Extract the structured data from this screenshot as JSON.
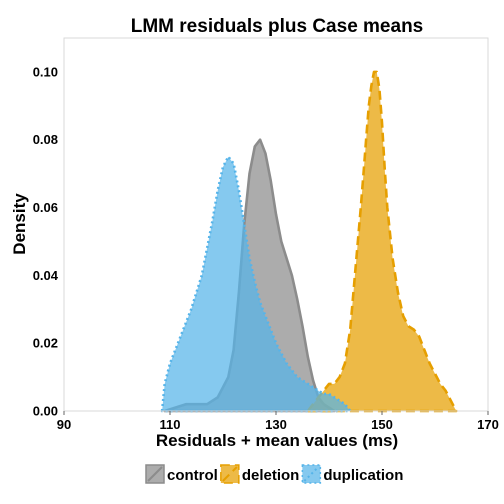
{
  "chart_data": {
    "type": "area",
    "title": "LMM residuals plus Case means",
    "xlabel": "Residuals + mean values (ms)",
    "ylabel": "Density",
    "xlim": [
      90,
      170
    ],
    "ylim": [
      0,
      0.11
    ],
    "x_ticks": [
      "90",
      "110",
      "130",
      "150",
      "170"
    ],
    "y_ticks": [
      "0.00",
      "0.02",
      "0.04",
      "0.06",
      "0.08",
      "0.10"
    ],
    "grid": false,
    "legend_position": "bottom",
    "series": [
      {
        "name": "control",
        "color": "#8c8c8c",
        "line_style": "solid",
        "x": [
          109,
          111,
          113,
          115,
          117,
          119,
          121,
          122,
          123,
          124,
          125,
          126,
          127,
          128,
          129,
          130,
          131,
          132,
          133,
          134,
          135,
          136,
          137,
          138,
          139,
          140,
          141
        ],
        "y": [
          0.0,
          0.001,
          0.002,
          0.002,
          0.002,
          0.004,
          0.01,
          0.018,
          0.035,
          0.055,
          0.07,
          0.078,
          0.08,
          0.076,
          0.068,
          0.058,
          0.05,
          0.045,
          0.04,
          0.033,
          0.025,
          0.016,
          0.009,
          0.004,
          0.002,
          0.001,
          0.0
        ]
      },
      {
        "name": "deletion",
        "color": "#e69f00",
        "line_style": "dashed",
        "x": [
          136,
          137,
          138,
          139,
          140,
          141,
          142,
          143,
          144,
          145,
          146,
          146.5,
          147,
          147.5,
          148,
          148.5,
          149,
          149.5,
          150,
          150.5,
          151,
          152,
          153,
          154,
          155,
          156,
          157,
          158,
          159,
          160,
          161,
          162,
          163,
          164
        ],
        "y": [
          0.0,
          0.002,
          0.004,
          0.006,
          0.008,
          0.008,
          0.01,
          0.014,
          0.024,
          0.042,
          0.06,
          0.07,
          0.08,
          0.09,
          0.096,
          0.1,
          0.1,
          0.095,
          0.085,
          0.072,
          0.06,
          0.045,
          0.035,
          0.028,
          0.025,
          0.024,
          0.022,
          0.018,
          0.014,
          0.011,
          0.008,
          0.006,
          0.003,
          0.0
        ]
      },
      {
        "name": "duplication",
        "color": "#56b4e9",
        "line_style": "dotted",
        "x": [
          108.5,
          109,
          110,
          111,
          112,
          113,
          114,
          115,
          116,
          117,
          118,
          119,
          120,
          121,
          122,
          123,
          124,
          125,
          126,
          127,
          128,
          129,
          130,
          131,
          132,
          133,
          134,
          135,
          136,
          137,
          138,
          139,
          140,
          141,
          142,
          143,
          144
        ],
        "y": [
          0.0,
          0.008,
          0.014,
          0.018,
          0.022,
          0.026,
          0.03,
          0.035,
          0.04,
          0.048,
          0.056,
          0.065,
          0.072,
          0.075,
          0.073,
          0.065,
          0.055,
          0.045,
          0.038,
          0.032,
          0.028,
          0.024,
          0.02,
          0.017,
          0.014,
          0.012,
          0.01,
          0.009,
          0.008,
          0.007,
          0.006,
          0.005,
          0.005,
          0.004,
          0.003,
          0.002,
          0.0
        ]
      }
    ]
  }
}
